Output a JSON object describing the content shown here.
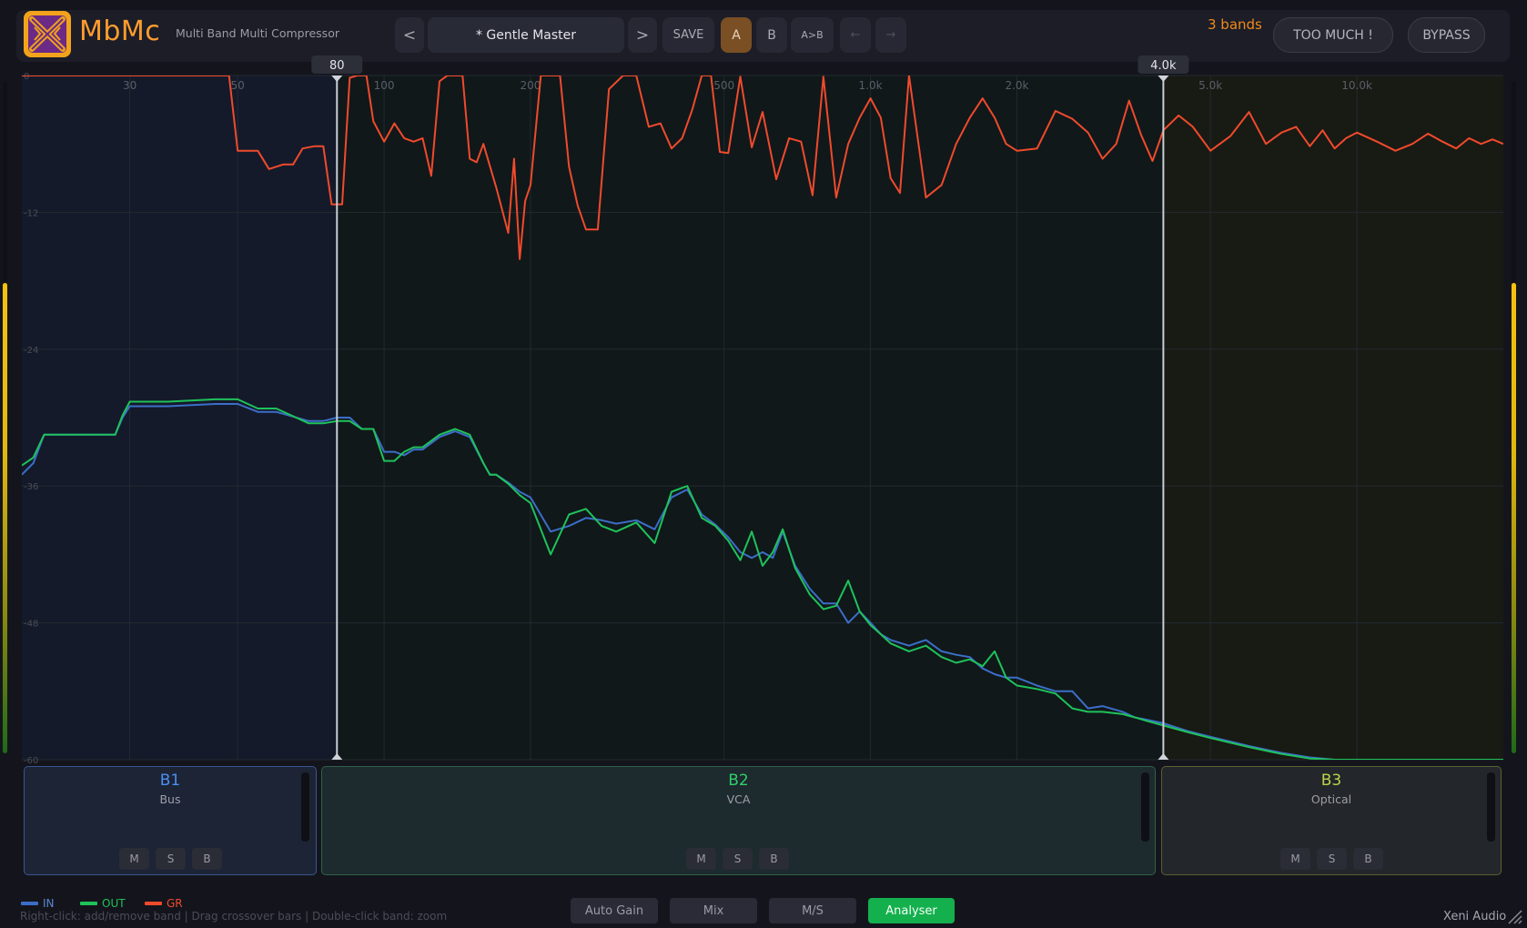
{
  "header": {
    "app_name": "MbMc",
    "subtitle": "Multi Band Multi Compressor",
    "prev_preset": "<",
    "preset_name": "* Gentle Master",
    "next_preset": ">",
    "save": "SAVE",
    "a": "A",
    "b": "B",
    "a_to_b": "A>B",
    "undo": "←",
    "redo": "→",
    "bands_count": "3 bands",
    "too_much": "TOO MUCH !",
    "bypass": "BYPASS"
  },
  "crossovers": [
    {
      "label": "80",
      "freq": 80
    },
    {
      "label": "4.0k",
      "freq": 4000
    }
  ],
  "graph": {
    "freq_ticks": [
      "30",
      "50",
      "100",
      "200",
      "500",
      "1.0k",
      "2.0k",
      "5.0k",
      "10.0k"
    ],
    "db_ticks": [
      "0",
      "-12",
      "-24",
      "-36",
      "-48",
      "-60"
    ]
  },
  "chart_data": {
    "type": "line",
    "xlabel": "",
    "ylabel": "",
    "x_scale": "log",
    "xlim": [
      18,
      20000
    ],
    "ylim": [
      -60,
      0
    ],
    "x_ticks": [
      30,
      50,
      100,
      200,
      500,
      1000,
      2000,
      5000,
      10000
    ],
    "y_ticks": [
      0,
      -12,
      -24,
      -36,
      -48,
      -60
    ],
    "grid": true,
    "legend": "bottom-left",
    "colors": {
      "IN": "#3c6ec8",
      "OUT": "#1fc25a",
      "GR": "#f04a2c"
    },
    "series": [
      {
        "name": "IN",
        "x": [
          18,
          19,
          20,
          25,
          28,
          29,
          30,
          36,
          45,
          50,
          55,
          60,
          70,
          75,
          80,
          85,
          90,
          95,
          100,
          105,
          110,
          115,
          120,
          130,
          140,
          150,
          160,
          165,
          170,
          180,
          190,
          200,
          220,
          240,
          260,
          280,
          300,
          330,
          360,
          390,
          420,
          450,
          480,
          510,
          540,
          570,
          600,
          630,
          660,
          700,
          750,
          800,
          850,
          900,
          950,
          1000,
          1050,
          1100,
          1200,
          1300,
          1400,
          1500,
          1600,
          1700,
          1800,
          1900,
          2000,
          2200,
          2400,
          2600,
          2800,
          3000,
          3300,
          3500,
          3700,
          4000,
          4500,
          5000,
          6000,
          7000,
          8000,
          9000,
          10000,
          12000,
          15000,
          20000
        ],
        "values": [
          -35.0,
          -34.0,
          -31.5,
          -31.5,
          -31.5,
          -30.0,
          -29.0,
          -29.0,
          -28.8,
          -28.8,
          -29.5,
          -29.5,
          -30.3,
          -30.3,
          -30.0,
          -30.0,
          -31.0,
          -31.0,
          -33.0,
          -33.0,
          -33.3,
          -32.8,
          -32.8,
          -31.7,
          -31.2,
          -31.7,
          -34.0,
          -35.0,
          -35.0,
          -35.7,
          -36.5,
          -37.0,
          -40.0,
          -39.5,
          -38.8,
          -39.0,
          -39.3,
          -39.0,
          -39.8,
          -37.0,
          -36.3,
          -38.5,
          -39.4,
          -40.5,
          -41.8,
          -42.3,
          -41.8,
          -42.3,
          -40.0,
          -43.0,
          -45.0,
          -46.3,
          -46.3,
          -48.0,
          -47.0,
          -48.0,
          -49.0,
          -49.5,
          -50.0,
          -49.5,
          -50.5,
          -50.8,
          -51.0,
          -52.0,
          -52.5,
          -52.8,
          -52.8,
          -53.5,
          -54.0,
          -54.0,
          -55.5,
          -55.3,
          -55.8,
          -56.3,
          -56.5,
          -56.8,
          -57.5,
          -58.0,
          -58.8,
          -59.4,
          -59.8,
          -60.0,
          -60.0,
          -60.0,
          -60.0,
          -60.0
        ]
      },
      {
        "name": "OUT",
        "x": [
          18,
          19,
          20,
          25,
          28,
          29,
          30,
          36,
          45,
          50,
          55,
          60,
          70,
          75,
          80,
          85,
          90,
          95,
          100,
          105,
          110,
          115,
          120,
          130,
          140,
          150,
          160,
          165,
          170,
          180,
          190,
          200,
          220,
          240,
          260,
          280,
          300,
          330,
          360,
          390,
          420,
          450,
          480,
          510,
          540,
          570,
          600,
          630,
          660,
          700,
          750,
          800,
          850,
          900,
          950,
          1000,
          1050,
          1100,
          1200,
          1300,
          1400,
          1500,
          1600,
          1700,
          1800,
          1900,
          2000,
          2200,
          2400,
          2600,
          2800,
          3000,
          3300,
          3500,
          3700,
          4000,
          4500,
          5000,
          6000,
          7000,
          8000,
          9000,
          10000,
          12000,
          15000,
          20000
        ],
        "values": [
          -34.2,
          -33.5,
          -31.5,
          -31.5,
          -31.5,
          -29.8,
          -28.6,
          -28.6,
          -28.4,
          -28.4,
          -29.2,
          -29.2,
          -30.5,
          -30.5,
          -30.3,
          -30.3,
          -31.0,
          -31.0,
          -33.8,
          -33.8,
          -33.0,
          -32.6,
          -32.6,
          -31.5,
          -31.0,
          -31.5,
          -34.0,
          -35.0,
          -35.0,
          -35.8,
          -36.8,
          -37.5,
          -42.0,
          -38.5,
          -38.0,
          -39.5,
          -40.0,
          -39.2,
          -41.0,
          -36.5,
          -36.0,
          -38.8,
          -39.5,
          -40.8,
          -42.5,
          -40.0,
          -43.0,
          -41.8,
          -39.8,
          -43.2,
          -45.5,
          -46.8,
          -46.5,
          -44.3,
          -47.0,
          -48.2,
          -49.0,
          -49.8,
          -50.5,
          -50.0,
          -51.0,
          -51.5,
          -51.2,
          -51.8,
          -50.5,
          -52.8,
          -53.5,
          -53.8,
          -54.2,
          -55.5,
          -55.8,
          -55.8,
          -56.0,
          -56.3,
          -56.6,
          -57.0,
          -57.6,
          -58.1,
          -58.9,
          -59.5,
          -59.9,
          -60.0,
          -60.0,
          -60.0,
          -60.0,
          -60.0
        ]
      },
      {
        "name": "GR",
        "x": [
          18,
          45,
          48,
          50,
          52,
          55,
          58,
          62,
          65,
          68,
          72,
          75,
          78,
          80,
          82,
          85,
          88,
          90,
          92,
          95,
          100,
          105,
          110,
          115,
          120,
          125,
          130,
          135,
          140,
          145,
          150,
          155,
          160,
          170,
          180,
          185,
          190,
          195,
          200,
          210,
          220,
          230,
          240,
          250,
          260,
          275,
          290,
          310,
          330,
          350,
          370,
          390,
          410,
          430,
          450,
          470,
          490,
          510,
          540,
          570,
          600,
          640,
          680,
          720,
          760,
          800,
          850,
          900,
          950,
          1000,
          1050,
          1100,
          1150,
          1200,
          1300,
          1400,
          1500,
          1600,
          1700,
          1800,
          1900,
          2000,
          2200,
          2400,
          2600,
          2800,
          3000,
          3200,
          3400,
          3600,
          3800,
          4000,
          4300,
          4600,
          5000,
          5500,
          6000,
          6500,
          7000,
          7500,
          8000,
          8500,
          9000,
          9500,
          10000,
          11000,
          12000,
          13000,
          14000,
          15000,
          16000,
          17000,
          18000,
          19000,
          20000
        ],
        "values": [
          0.0,
          0.0,
          0.0,
          -6.6,
          -6.6,
          -6.6,
          -8.2,
          -7.8,
          -7.8,
          -6.4,
          -6.2,
          -6.2,
          -11.3,
          -11.3,
          -11.3,
          -0.2,
          0.0,
          0.0,
          0.0,
          -4.0,
          -5.8,
          -4.2,
          -5.5,
          -5.8,
          -5.5,
          -8.8,
          -0.5,
          0.0,
          0.0,
          0.0,
          -7.3,
          -7.6,
          -6.0,
          -9.8,
          -13.8,
          -7.3,
          -16.1,
          -11.0,
          -9.6,
          0.0,
          0.0,
          0.0,
          -8.0,
          -11.4,
          -13.5,
          -13.5,
          -1.2,
          0.0,
          0.0,
          -4.5,
          -4.2,
          -6.4,
          -5.5,
          -3.0,
          0.0,
          0.0,
          -6.7,
          -6.8,
          -0.1,
          -6.3,
          -3.2,
          -9.1,
          -5.5,
          -5.8,
          -10.5,
          -0.1,
          -10.7,
          -6.0,
          -3.7,
          -2.0,
          -3.7,
          -9.0,
          -10.3,
          0.0,
          -10.7,
          -9.6,
          -6.0,
          -3.7,
          -2.0,
          -3.7,
          -6.0,
          -6.6,
          -6.4,
          -3.1,
          -3.8,
          -5.0,
          -7.3,
          -6.0,
          -2.2,
          -5.2,
          -7.5,
          -4.8,
          -3.5,
          -4.5,
          -6.6,
          -5.3,
          -3.2,
          -6.0,
          -5.0,
          -4.5,
          -6.2,
          -4.8,
          -6.4,
          -5.5,
          -5.0,
          -5.8,
          -6.6,
          -6.0,
          -5.1,
          -5.8,
          -6.4,
          -5.5,
          -6.0,
          -5.6,
          -6.0
        ]
      }
    ]
  },
  "bands": [
    {
      "name": "B1",
      "type": "Bus",
      "color": "#4d8ef0"
    },
    {
      "name": "B2",
      "type": "VCA",
      "color": "#2fcf6a"
    },
    {
      "name": "B3",
      "type": "Optical",
      "color": "#b9d34a"
    }
  ],
  "band_buttons": {
    "m": "M",
    "s": "S",
    "b": "B"
  },
  "legend": {
    "in": "IN",
    "out": "OUT",
    "gr": "GR"
  },
  "footer": {
    "hint": "Right-click: add/remove band | Drag crossover bars | Double-click band: zoom",
    "auto_gain": "Auto Gain",
    "mix": "Mix",
    "ms": "M/S",
    "analyser": "Analyser",
    "brand": "Xeni Audio"
  },
  "meters": {
    "left_level": 0.7,
    "right_level": 0.7
  }
}
